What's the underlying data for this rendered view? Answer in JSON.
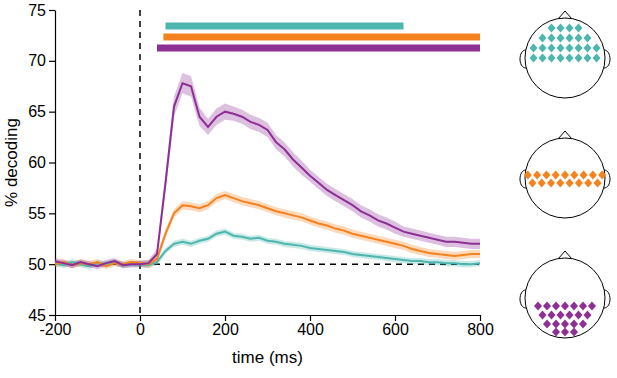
{
  "chart_data": {
    "type": "line",
    "x_label": "time (ms)",
    "y_label": "% decoding",
    "x": [
      -200,
      -180,
      -160,
      -140,
      -120,
      -100,
      -80,
      -60,
      -40,
      -20,
      0,
      20,
      40,
      60,
      80,
      100,
      120,
      140,
      160,
      180,
      200,
      220,
      240,
      260,
      280,
      300,
      320,
      340,
      360,
      380,
      400,
      420,
      440,
      460,
      480,
      500,
      520,
      540,
      560,
      580,
      600,
      620,
      640,
      660,
      680,
      700,
      720,
      740,
      760,
      780,
      800
    ],
    "xlim": [
      -200,
      800
    ],
    "xticks": [
      -200,
      0,
      200,
      400,
      600,
      800
    ],
    "ylim": [
      45,
      75
    ],
    "yticks": [
      45,
      50,
      55,
      60,
      65,
      70,
      75
    ],
    "vlines": [
      0
    ],
    "hlines": [
      50
    ],
    "line_style": "dashed",
    "series": [
      {
        "color": "#4db6ae",
        "values": [
          50.1,
          49.9,
          50.2,
          50.0,
          49.8,
          50.1,
          50.0,
          50.2,
          49.9,
          50.0,
          50.0,
          49.9,
          50.2,
          51.3,
          52.0,
          52.2,
          52.0,
          52.3,
          52.5,
          53.0,
          53.2,
          52.8,
          52.7,
          52.5,
          52.6,
          52.3,
          52.2,
          52.0,
          51.9,
          51.8,
          51.6,
          51.5,
          51.4,
          51.3,
          51.2,
          51.0,
          50.9,
          50.8,
          50.7,
          50.6,
          50.5,
          50.4,
          50.3,
          50.3,
          50.2,
          50.2,
          50.1,
          50.1,
          50.0,
          50.0,
          50.1
        ],
        "errors": [
          0.3,
          0.3,
          0.3,
          0.3,
          0.3,
          0.3,
          0.3,
          0.3,
          0.3,
          0.3,
          0.3,
          0.3,
          0.3,
          0.3,
          0.3,
          0.3,
          0.3,
          0.3,
          0.3,
          0.3,
          0.3,
          0.3,
          0.3,
          0.3,
          0.3,
          0.3,
          0.3,
          0.3,
          0.3,
          0.3,
          0.3,
          0.3,
          0.3,
          0.3,
          0.3,
          0.3,
          0.3,
          0.3,
          0.3,
          0.3,
          0.3,
          0.3,
          0.3,
          0.3,
          0.3,
          0.3,
          0.3,
          0.3,
          0.3,
          0.3,
          0.3
        ],
        "significance": [
          60,
          620
        ]
      },
      {
        "color": "#f5821f",
        "values": [
          50.0,
          50.2,
          49.9,
          50.1,
          50.0,
          50.2,
          49.8,
          50.1,
          50.0,
          50.2,
          50.1,
          50.0,
          50.5,
          53.0,
          55.0,
          55.8,
          55.7,
          55.5,
          55.8,
          56.5,
          56.8,
          56.5,
          56.2,
          56.0,
          55.8,
          55.5,
          55.2,
          55.0,
          54.8,
          54.6,
          54.3,
          54.0,
          53.8,
          53.5,
          53.3,
          53.0,
          52.8,
          52.6,
          52.4,
          52.2,
          52.0,
          51.8,
          51.5,
          51.3,
          51.1,
          51.0,
          50.9,
          50.8,
          50.9,
          51.0,
          51.0
        ],
        "errors": [
          0.3,
          0.3,
          0.3,
          0.3,
          0.3,
          0.3,
          0.3,
          0.3,
          0.3,
          0.3,
          0.3,
          0.4,
          0.4,
          0.4,
          0.4,
          0.4,
          0.4,
          0.4,
          0.4,
          0.4,
          0.4,
          0.4,
          0.4,
          0.4,
          0.4,
          0.4,
          0.4,
          0.4,
          0.4,
          0.4,
          0.4,
          0.4,
          0.4,
          0.4,
          0.4,
          0.4,
          0.4,
          0.4,
          0.4,
          0.4,
          0.4,
          0.4,
          0.4,
          0.4,
          0.4,
          0.4,
          0.4,
          0.4,
          0.4,
          0.4,
          0.4
        ],
        "significance": [
          55,
          800
        ]
      },
      {
        "color": "#8e2f96",
        "values": [
          50.3,
          50.1,
          49.9,
          50.2,
          50.0,
          49.8,
          50.1,
          50.3,
          49.9,
          50.0,
          50.0,
          50.1,
          51.0,
          58.0,
          65.5,
          67.8,
          67.5,
          64.5,
          63.5,
          64.5,
          65.0,
          64.8,
          64.5,
          64.0,
          63.7,
          63.2,
          62.0,
          61.3,
          60.3,
          59.5,
          58.7,
          58.0,
          57.3,
          56.8,
          56.3,
          55.8,
          55.2,
          54.8,
          54.3,
          54.0,
          53.6,
          53.2,
          53.0,
          52.8,
          52.6,
          52.4,
          52.2,
          52.2,
          52.1,
          52.0,
          52.0
        ],
        "errors": [
          0.3,
          0.3,
          0.3,
          0.3,
          0.3,
          0.3,
          0.3,
          0.3,
          0.3,
          0.3,
          0.3,
          0.3,
          0.5,
          0.9,
          1.0,
          1.0,
          1.0,
          0.9,
          0.8,
          0.8,
          0.8,
          0.7,
          0.7,
          0.7,
          0.7,
          0.7,
          0.7,
          0.7,
          0.7,
          0.7,
          0.6,
          0.6,
          0.6,
          0.6,
          0.6,
          0.6,
          0.6,
          0.6,
          0.6,
          0.6,
          0.6,
          0.5,
          0.5,
          0.5,
          0.5,
          0.5,
          0.5,
          0.5,
          0.5,
          0.5,
          0.5
        ],
        "significance": [
          40,
          800
        ]
      }
    ]
  }
}
